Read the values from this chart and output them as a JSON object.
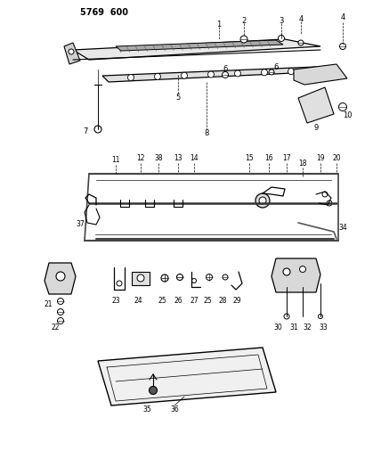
{
  "title": "5769 600",
  "bg": "#ffffff",
  "lc": "#000000",
  "fig_w": 4.28,
  "fig_h": 5.33,
  "dpi": 100
}
